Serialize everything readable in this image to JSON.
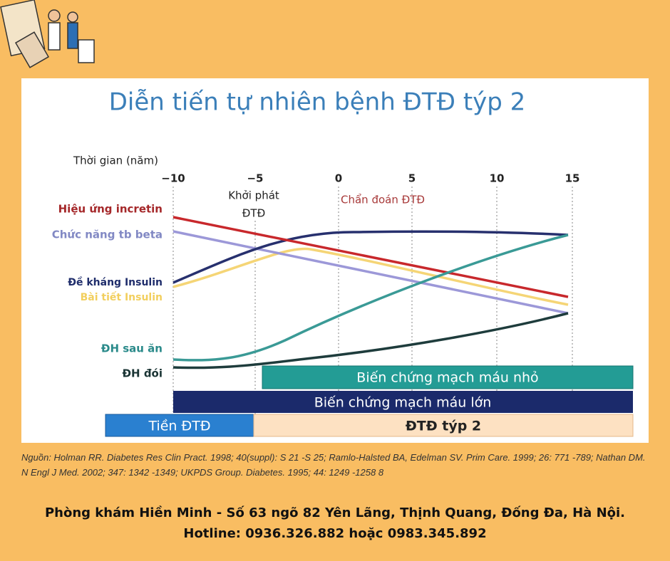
{
  "title": "Diễn tiến tự nhiên bệnh ĐTĐ týp 2",
  "axis_label": "Thời gian (năm)",
  "ticks": [
    "−10",
    "−5",
    "0",
    "5",
    "10",
    "15"
  ],
  "annotations": {
    "onset_line1": "Khởi phát",
    "onset_line2": "ĐTĐ",
    "diagnosis": "Chẩn đoán ĐTĐ"
  },
  "curve_labels": [
    "Hiệu ứng incretin",
    "Chức năng tb beta",
    "Đề kháng Insulin",
    "Bài tiết Insulin",
    "ĐH sau ăn",
    "ĐH đói"
  ],
  "bars": [
    "Biến chứng mạch máu nhỏ",
    "Biến chứng mạch máu lớn",
    "Tiền ĐTĐ",
    "ĐTĐ týp 2"
  ],
  "source": "Nguồn: Holman RR. Diabetes Res Clin Pract. 1998; 40(suppl): S 21 -S 25; Ramlo-Halsted BA, Edelman SV. Prim Care. 1999; 26: 771 -789; Nathan DM. N Engl J Med. 2002; 347: 1342 -1349; UKPDS Group. Diabetes. 1995; 44: 1249 -1258 8",
  "footer": {
    "address": "Phòng khám Hiền Minh - Số 63 ngõ 82 Yên Lãng, Thịnh Quang, Đống Đa, Hà Nội.",
    "hotline": "Hotline: 0936.326.882 hoặc 0983.345.892"
  }
}
